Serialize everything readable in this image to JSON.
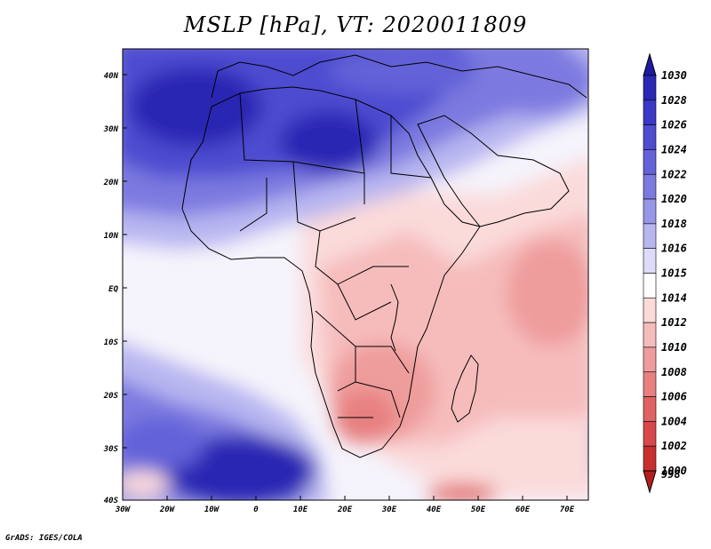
{
  "title": "MSLP [hPa], VT: 2020011809",
  "credit": "GrADS: IGES/COLA",
  "axes": {
    "lat_labels": [
      "40N",
      "30N",
      "20N",
      "10N",
      "EQ",
      "10S",
      "20S",
      "30S",
      "40S"
    ],
    "lon_labels": [
      "30W",
      "20W",
      "10W",
      "0",
      "10E",
      "20E",
      "30E",
      "40E",
      "50E",
      "60E",
      "70E"
    ]
  },
  "colorbar": {
    "levels": [
      "1030",
      "1028",
      "1026",
      "1024",
      "1022",
      "1020",
      "1018",
      "1016",
      "1015",
      "1014",
      "1012",
      "1010",
      "1008",
      "1006",
      "1004",
      "1002",
      "1000",
      "998"
    ],
    "colors": [
      "#1f1aa0",
      "#2a28b4",
      "#3a38c4",
      "#4e4cd0",
      "#6462d8",
      "#7c7ae0",
      "#9896e8",
      "#b8b6f0",
      "#dcdcf8",
      "#ffffff",
      "#fbdada",
      "#f6bcbc",
      "#ef9c9c",
      "#e88080",
      "#e06262",
      "#d84848",
      "#c82e2e",
      "#b21e1e"
    ]
  },
  "colors": {
    "high": "#2a28b4",
    "mid_high": "#7c7ae0",
    "neutral": "#ffffff",
    "low": "#ef9c9c",
    "deep_low": "#d84848"
  }
}
